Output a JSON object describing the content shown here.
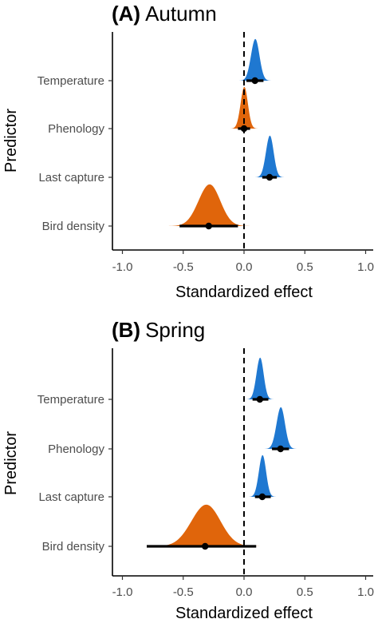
{
  "chart_data": [
    {
      "type": "density",
      "panel_letter": "(A)",
      "title": "Autumn",
      "xlabel": "Standardized effect",
      "ylabel": "Predictor",
      "xlim": [
        -1.1,
        1.1
      ],
      "xticks": [
        -1.0,
        -0.5,
        0.0,
        0.5,
        1.0
      ],
      "xtick_labels": [
        "-1.0",
        "-0.5",
        "0.0",
        "0.5",
        "1.0"
      ],
      "reference_line_x": 0.0,
      "predictors": [
        {
          "label": "Temperature",
          "median": 0.09,
          "mean": 0.09,
          "sd": 0.035,
          "ci_lo": 0.02,
          "ci_hi": 0.16,
          "direction": "positive",
          "color": "#1f78d1"
        },
        {
          "label": "Phenology",
          "median": 0.0,
          "mean": 0.0,
          "sd": 0.03,
          "ci_lo": -0.05,
          "ci_hi": 0.05,
          "direction": "negative",
          "color": "#e0650b"
        },
        {
          "label": "Last capture",
          "median": 0.21,
          "mean": 0.21,
          "sd": 0.032,
          "ci_lo": 0.15,
          "ci_hi": 0.27,
          "direction": "positive",
          "color": "#1f78d1"
        },
        {
          "label": "Bird density",
          "median": -0.29,
          "mean": -0.29,
          "sd": 0.09,
          "ci_lo": -0.53,
          "ci_hi": -0.05,
          "direction": "negative",
          "color": "#e0650b"
        }
      ]
    },
    {
      "type": "density",
      "panel_letter": "(B)",
      "title": "Spring",
      "xlabel": "Standardized effect",
      "ylabel": "Predictor",
      "xlim": [
        -1.1,
        1.1
      ],
      "xticks": [
        -1.0,
        -0.5,
        0.0,
        0.5,
        1.0
      ],
      "xtick_labels": [
        "-1.0",
        "-0.5",
        "0.0",
        "0.5",
        "1.0"
      ],
      "reference_line_x": 0.0,
      "predictors": [
        {
          "label": "Temperature",
          "median": 0.13,
          "mean": 0.13,
          "sd": 0.03,
          "ci_lo": 0.07,
          "ci_hi": 0.2,
          "direction": "positive",
          "color": "#1f78d1"
        },
        {
          "label": "Phenology",
          "median": 0.3,
          "mean": 0.3,
          "sd": 0.035,
          "ci_lo": 0.23,
          "ci_hi": 0.37,
          "direction": "positive",
          "color": "#1f78d1"
        },
        {
          "label": "Last capture",
          "median": 0.15,
          "mean": 0.15,
          "sd": 0.03,
          "ci_lo": 0.09,
          "ci_hi": 0.22,
          "direction": "positive",
          "color": "#1f78d1"
        },
        {
          "label": "Bird density",
          "median": -0.32,
          "mean": -0.32,
          "sd": 0.12,
          "ci_lo": -0.8,
          "ci_hi": 0.1,
          "direction": "negative",
          "color": "#e0650b"
        }
      ]
    }
  ]
}
